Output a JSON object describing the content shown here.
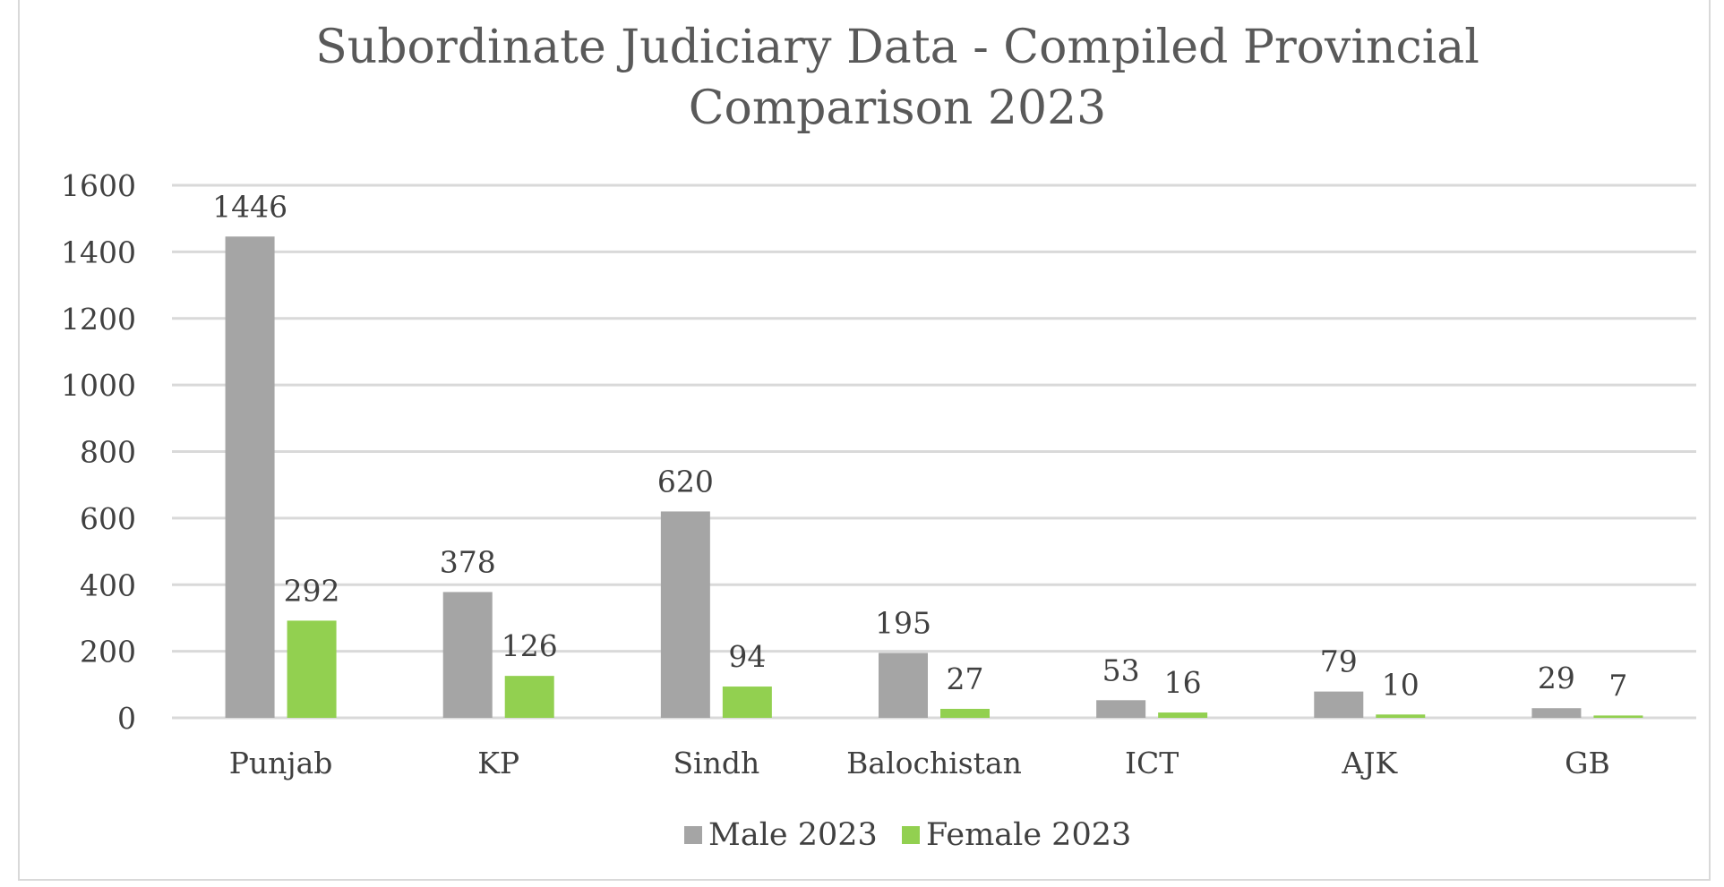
{
  "chart_data": {
    "type": "bar",
    "title_lines": [
      "Subordinate Judiciary Data - Compiled Provincial",
      "Comparison 2023"
    ],
    "categories": [
      "Punjab",
      "KP",
      "Sindh",
      "Balochistan",
      "ICT",
      "AJK",
      "GB"
    ],
    "series": [
      {
        "name": "Male 2023",
        "values": [
          1446,
          378,
          620,
          195,
          53,
          79,
          29
        ],
        "color": "#a5a5a5"
      },
      {
        "name": "Female 2023",
        "values": [
          292,
          126,
          94,
          27,
          16,
          10,
          7
        ],
        "color": "#92d050"
      }
    ],
    "ylim": [
      0,
      1600
    ],
    "yticks": [
      0,
      200,
      400,
      600,
      800,
      1000,
      1200,
      1400,
      1600
    ],
    "grid": true,
    "legend_position": "bottom",
    "data_labels": true
  }
}
